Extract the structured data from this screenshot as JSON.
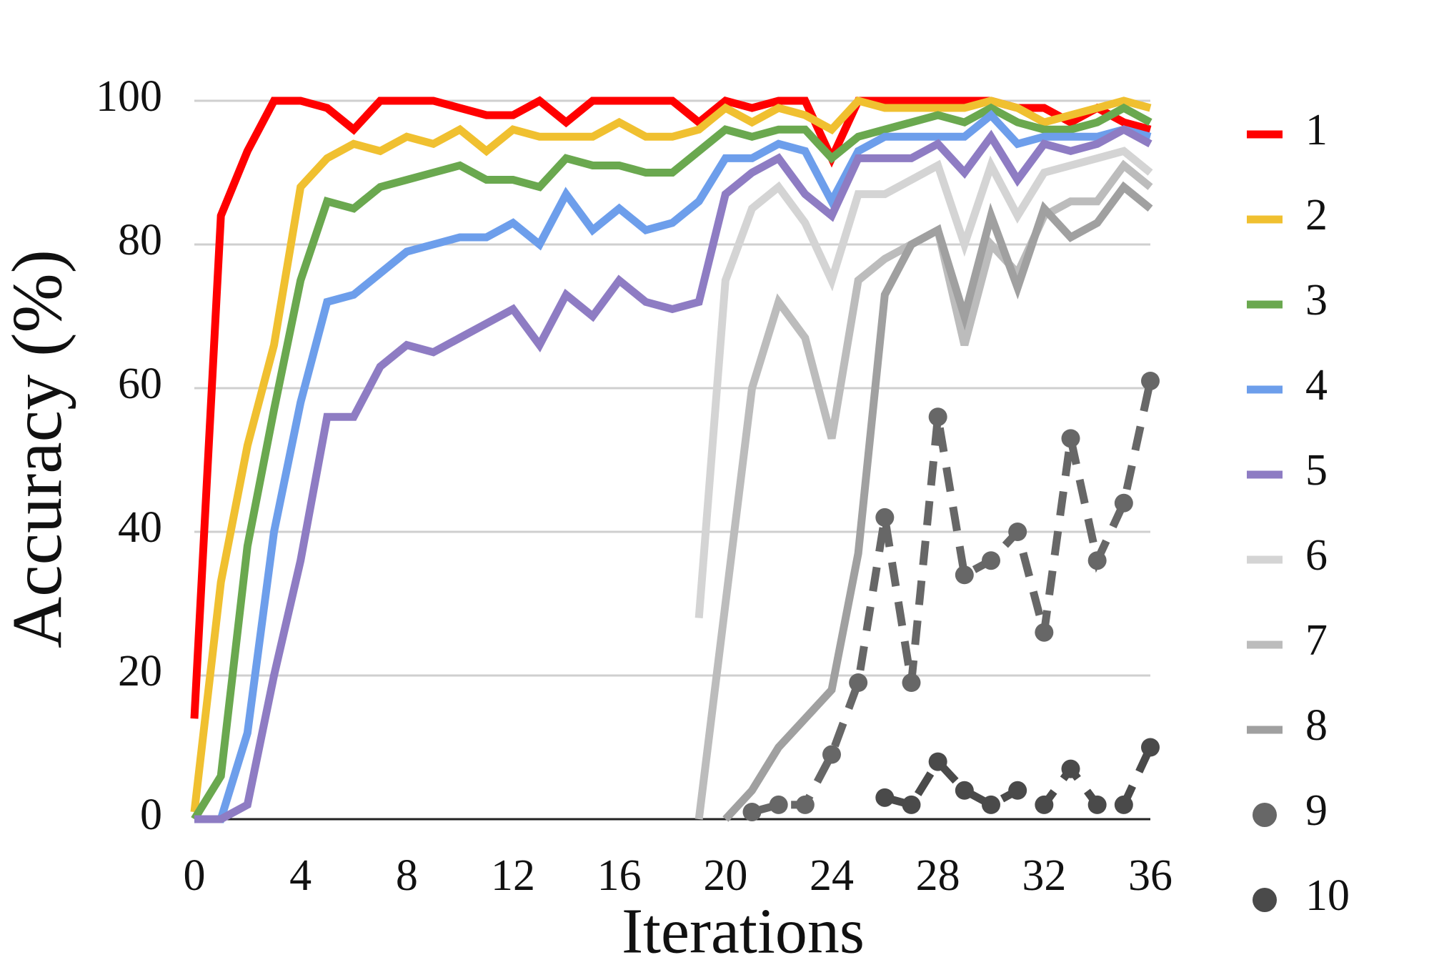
{
  "chart_data": {
    "type": "line",
    "x_label": "Iterations",
    "y_label": "Accuracy (%)",
    "x": [
      0,
      1,
      2,
      3,
      4,
      5,
      6,
      7,
      8,
      9,
      10,
      11,
      12,
      13,
      14,
      15,
      16,
      17,
      18,
      19,
      20,
      21,
      22,
      23,
      24,
      25,
      26,
      27,
      28,
      29,
      30,
      31,
      32,
      33,
      34,
      35,
      36
    ],
    "xlim": [
      0,
      36
    ],
    "xticks": [
      0,
      4,
      8,
      12,
      16,
      20,
      24,
      28,
      32,
      36
    ],
    "ylim": [
      0,
      100
    ],
    "yticks": [
      0,
      20,
      40,
      60,
      80,
      100
    ],
    "grid": true,
    "legend": "right",
    "series": [
      {
        "name": "1",
        "color": "#ff0000",
        "style": "solid",
        "values": [
          14,
          84,
          93,
          100,
          100,
          99,
          96,
          100,
          100,
          100,
          99,
          98,
          98,
          100,
          97,
          100,
          100,
          100,
          100,
          97,
          100,
          99,
          100,
          100,
          92,
          100,
          100,
          100,
          100,
          100,
          100,
          99,
          99,
          97,
          99,
          97,
          96
        ]
      },
      {
        "name": "2",
        "color": "#f0c030",
        "style": "solid",
        "values": [
          1,
          33,
          52,
          66,
          88,
          92,
          94,
          93,
          95,
          94,
          96,
          93,
          96,
          95,
          95,
          95,
          97,
          95,
          95,
          96,
          99,
          97,
          99,
          98,
          96,
          100,
          99,
          99,
          99,
          99,
          100,
          99,
          97,
          98,
          99,
          100,
          99
        ]
      },
      {
        "name": "3",
        "color": "#6aa84f",
        "style": "solid",
        "values": [
          0,
          6,
          38,
          57,
          75,
          86,
          85,
          88,
          89,
          90,
          91,
          89,
          89,
          88,
          92,
          91,
          91,
          90,
          90,
          93,
          96,
          95,
          96,
          96,
          92,
          95,
          96,
          97,
          98,
          97,
          99,
          97,
          96,
          96,
          97,
          99,
          97
        ]
      },
      {
        "name": "4",
        "color": "#6d9eeb",
        "style": "solid",
        "values": [
          0,
          0,
          12,
          40,
          58,
          72,
          73,
          76,
          79,
          80,
          81,
          81,
          83,
          80,
          87,
          82,
          85,
          82,
          83,
          86,
          92,
          92,
          94,
          93,
          86,
          93,
          95,
          95,
          95,
          95,
          98,
          94,
          95,
          95,
          95,
          96,
          95
        ]
      },
      {
        "name": "5",
        "color": "#8e7cc3",
        "style": "solid",
        "values": [
          0,
          0,
          2,
          20,
          36,
          56,
          56,
          63,
          66,
          65,
          67,
          69,
          71,
          66,
          73,
          70,
          75,
          72,
          71,
          72,
          87,
          90,
          92,
          87,
          84,
          92,
          92,
          92,
          94,
          90,
          95,
          89,
          94,
          93,
          94,
          96,
          94
        ]
      },
      {
        "name": "6",
        "color": "#d4d4d4",
        "style": "solid",
        "values": [
          null,
          null,
          null,
          null,
          null,
          null,
          null,
          null,
          null,
          null,
          null,
          null,
          null,
          null,
          null,
          null,
          null,
          null,
          null,
          28,
          75,
          85,
          88,
          83,
          75,
          87,
          87,
          89,
          91,
          80,
          91,
          84,
          90,
          91,
          92,
          93,
          90
        ]
      },
      {
        "name": "7",
        "color": "#bcbcbc",
        "style": "solid",
        "values": [
          null,
          null,
          null,
          null,
          null,
          null,
          null,
          null,
          null,
          null,
          null,
          null,
          null,
          null,
          null,
          null,
          null,
          null,
          null,
          0,
          30,
          60,
          72,
          67,
          53,
          75,
          78,
          80,
          82,
          66,
          80,
          76,
          84,
          86,
          86,
          91,
          88
        ]
      },
      {
        "name": "8",
        "color": "#a0a0a0",
        "style": "solid",
        "values": [
          null,
          null,
          null,
          null,
          null,
          null,
          null,
          null,
          null,
          null,
          null,
          null,
          null,
          null,
          null,
          null,
          null,
          null,
          null,
          null,
          0,
          4,
          10,
          14,
          18,
          37,
          73,
          80,
          82,
          70,
          84,
          74,
          85,
          81,
          83,
          88,
          85
        ]
      },
      {
        "name": "9",
        "color": "#676767",
        "style": "dashed",
        "values": [
          null,
          null,
          null,
          null,
          null,
          null,
          null,
          null,
          null,
          null,
          null,
          null,
          null,
          null,
          null,
          null,
          null,
          null,
          null,
          null,
          null,
          1,
          2,
          2,
          9,
          19,
          42,
          19,
          56,
          34,
          36,
          40,
          26,
          53,
          36,
          44,
          61
        ]
      },
      {
        "name": "10",
        "color": "#4a4a4a",
        "style": "dashed",
        "values": [
          null,
          null,
          null,
          null,
          null,
          null,
          null,
          null,
          null,
          null,
          null,
          null,
          null,
          null,
          null,
          null,
          null,
          null,
          null,
          null,
          null,
          null,
          null,
          null,
          null,
          null,
          3,
          2,
          8,
          4,
          2,
          4,
          2,
          7,
          2,
          2,
          10
        ]
      }
    ]
  }
}
